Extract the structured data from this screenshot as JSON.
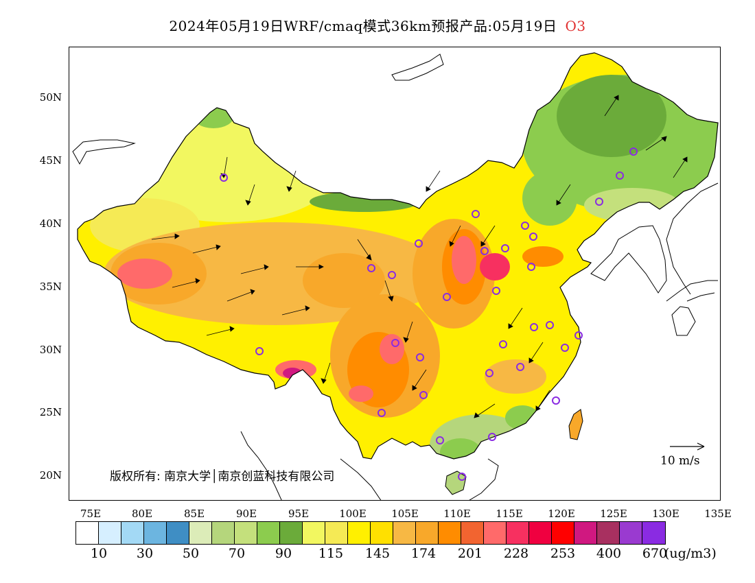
{
  "title": {
    "main": "2024年05月19日WRF/cmaq模式36km预报产品:05月19日",
    "species": "O3"
  },
  "axes": {
    "lat_labels": [
      "50N",
      "45N",
      "40N",
      "35N",
      "30N",
      "25N",
      "20N"
    ],
    "lon_labels": [
      "75E",
      "80E",
      "85E",
      "90E",
      "95E",
      "100E",
      "105E",
      "110E",
      "115E",
      "120E",
      "125E",
      "130E",
      "135E"
    ]
  },
  "copyright": "版权所有: 南京大学│南京创蓝科技有限公司",
  "wind_reference": "10 m/s",
  "legend": {
    "colors": [
      "#ffffff",
      "#d6efff",
      "#a3d9f5",
      "#6cb5e0",
      "#3f8ec4",
      "#dcecb8",
      "#b5d67c",
      "#c4e07c",
      "#8ccc4e",
      "#6bab3a",
      "#f2f760",
      "#f5ea55",
      "#fff000",
      "#ffe000",
      "#f7b844",
      "#f8a82a",
      "#ff8c00",
      "#f26430",
      "#ff6a6a",
      "#f73060",
      "#f00040",
      "#ff0000",
      "#d01880",
      "#a83060",
      "#9a3ad0",
      "#8a2be2"
    ],
    "labels": [
      "10",
      "30",
      "50",
      "70",
      "90",
      "115",
      "145",
      "174",
      "201",
      "228",
      "253",
      "400",
      "670"
    ],
    "unit": "(ug/m3)"
  },
  "stations": 31
}
